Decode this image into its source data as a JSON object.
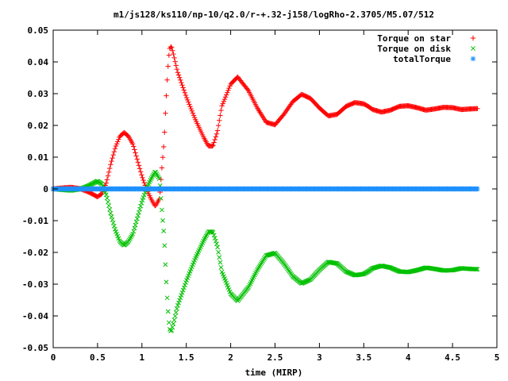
{
  "chart_data": {
    "type": "scatter",
    "title": "m1/js128/ks110/np-10/q2.0/r-+.32-j158/logRho-2.3705/M5.07/512",
    "xlabel": "time (MIRP)",
    "ylabel": "",
    "xlim": [
      0,
      5
    ],
    "ylim": [
      -0.05,
      0.05
    ],
    "xticks": [
      "0",
      "0.5",
      "1",
      "1.5",
      "2",
      "2.5",
      "3",
      "3.5",
      "4",
      "4.5",
      "5"
    ],
    "yticks": [
      "0.05",
      "0.04",
      "0.03",
      "0.02",
      "0.01",
      "0",
      "-0.01",
      "-0.02",
      "-0.03",
      "-0.04",
      "-0.05"
    ],
    "legend_position": "top-right",
    "grid": false,
    "series": [
      {
        "name": "Torque on star",
        "marker": "plus",
        "color": "#ff0000",
        "x": [
          0,
          0.1,
          0.2,
          0.3,
          0.4,
          0.5,
          0.55,
          0.6,
          0.65,
          0.7,
          0.75,
          0.8,
          0.85,
          0.9,
          0.95,
          1.0,
          1.05,
          1.1,
          1.15,
          1.2,
          1.22,
          1.25,
          1.27,
          1.29,
          1.31,
          1.33,
          1.35,
          1.4,
          1.5,
          1.6,
          1.7,
          1.75,
          1.8,
          1.85,
          1.9,
          2.0,
          2.08,
          2.1,
          2.2,
          2.3,
          2.4,
          2.5,
          2.6,
          2.7,
          2.8,
          2.9,
          3.0,
          3.1,
          3.2,
          3.3,
          3.4,
          3.5,
          3.55,
          3.6,
          3.7,
          3.8,
          3.9,
          4.0,
          4.1,
          4.2,
          4.3,
          4.4,
          4.5,
          4.6,
          4.7,
          4.78
        ],
        "y": [
          0.0,
          0.0003,
          0.0005,
          0.0001,
          -0.001,
          -0.0025,
          -0.0015,
          0.002,
          0.008,
          0.013,
          0.0165,
          0.0178,
          0.0165,
          0.014,
          0.009,
          0.004,
          0.0,
          -0.003,
          -0.0055,
          -0.003,
          0.005,
          0.015,
          0.027,
          0.037,
          0.044,
          0.045,
          0.043,
          0.037,
          0.029,
          0.022,
          0.016,
          0.0135,
          0.0135,
          0.018,
          0.026,
          0.033,
          0.0353,
          0.0345,
          0.031,
          0.0255,
          0.021,
          0.0202,
          0.0235,
          0.0275,
          0.0298,
          0.0285,
          0.0255,
          0.023,
          0.0235,
          0.026,
          0.0272,
          0.0268,
          0.026,
          0.025,
          0.0242,
          0.0248,
          0.026,
          0.0262,
          0.0256,
          0.0248,
          0.0252,
          0.0257,
          0.0256,
          0.025,
          0.0252,
          0.0253
        ]
      },
      {
        "name": "Torque on disk",
        "marker": "cross",
        "color": "#00c000",
        "x": [
          0,
          0.1,
          0.2,
          0.3,
          0.4,
          0.5,
          0.55,
          0.6,
          0.65,
          0.7,
          0.75,
          0.8,
          0.85,
          0.9,
          0.95,
          1.0,
          1.05,
          1.1,
          1.15,
          1.2,
          1.22,
          1.25,
          1.27,
          1.29,
          1.31,
          1.33,
          1.35,
          1.4,
          1.5,
          1.6,
          1.7,
          1.75,
          1.8,
          1.85,
          1.9,
          2.0,
          2.08,
          2.1,
          2.2,
          2.3,
          2.4,
          2.5,
          2.6,
          2.7,
          2.8,
          2.9,
          3.0,
          3.1,
          3.2,
          3.3,
          3.4,
          3.5,
          3.55,
          3.6,
          3.7,
          3.8,
          3.9,
          4.0,
          4.1,
          4.2,
          4.3,
          4.4,
          4.5,
          4.6,
          4.7,
          4.78
        ],
        "y": [
          0.0,
          -0.0003,
          -0.0005,
          -0.0001,
          0.001,
          0.0025,
          0.0015,
          -0.002,
          -0.008,
          -0.013,
          -0.0165,
          -0.0178,
          -0.0165,
          -0.014,
          -0.009,
          -0.004,
          0.0,
          0.003,
          0.0055,
          0.003,
          -0.005,
          -0.015,
          -0.027,
          -0.037,
          -0.044,
          -0.045,
          -0.043,
          -0.037,
          -0.029,
          -0.022,
          -0.016,
          -0.0135,
          -0.0135,
          -0.018,
          -0.026,
          -0.033,
          -0.0353,
          -0.0345,
          -0.031,
          -0.0255,
          -0.021,
          -0.0202,
          -0.0235,
          -0.0275,
          -0.0298,
          -0.0285,
          -0.0255,
          -0.023,
          -0.0235,
          -0.026,
          -0.0272,
          -0.0268,
          -0.026,
          -0.025,
          -0.0242,
          -0.0248,
          -0.026,
          -0.0262,
          -0.0256,
          -0.0248,
          -0.0252,
          -0.0257,
          -0.0256,
          -0.025,
          -0.0252,
          -0.0253
        ]
      },
      {
        "name": "totalTorque",
        "marker": "star",
        "color": "#1e90ff",
        "x": [
          0,
          0.5,
          1.0,
          1.5,
          2.0,
          2.5,
          3.0,
          3.5,
          4.0,
          4.5,
          4.78
        ],
        "y": [
          0,
          0,
          0,
          0,
          0,
          0,
          0,
          0,
          0,
          0,
          0
        ]
      }
    ]
  }
}
